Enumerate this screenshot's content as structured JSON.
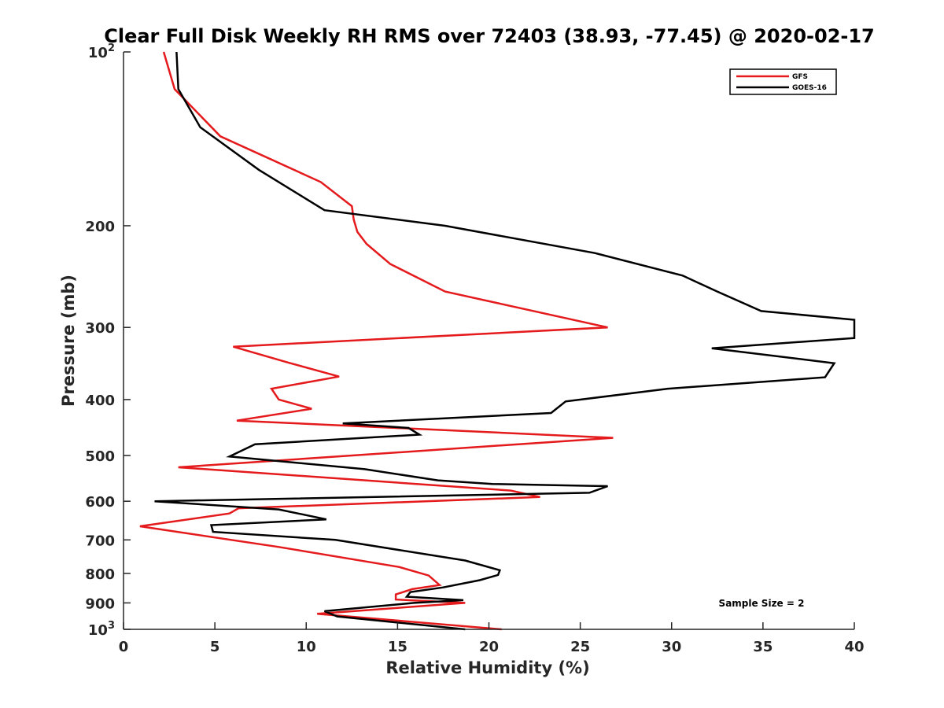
{
  "chart_data": {
    "type": "line",
    "title": "Clear Full Disk Weekly RH RMS over 72403 (38.93, -77.45) @ 2020-02-17",
    "xlabel": "Relative Humidity (%)",
    "ylabel": "Pressure (mb)",
    "xlim": [
      0,
      40
    ],
    "ylim": [
      100,
      1000
    ],
    "y_scale": "log",
    "y_reversed": true,
    "x_ticks": [
      "0",
      "5",
      "10",
      "15",
      "20",
      "25",
      "30",
      "35",
      "40"
    ],
    "y_ticks": [
      {
        "value": 100,
        "base": "10",
        "exp": "2"
      },
      {
        "value": 200,
        "base": "200",
        "exp": ""
      },
      {
        "value": 300,
        "base": "300",
        "exp": ""
      },
      {
        "value": 400,
        "base": "400",
        "exp": ""
      },
      {
        "value": 500,
        "base": "500",
        "exp": ""
      },
      {
        "value": 600,
        "base": "600",
        "exp": ""
      },
      {
        "value": 700,
        "base": "700",
        "exp": ""
      },
      {
        "value": 800,
        "base": "800",
        "exp": ""
      },
      {
        "value": 900,
        "base": "900",
        "exp": ""
      },
      {
        "value": 1000,
        "base": "10",
        "exp": "3"
      }
    ],
    "grid": false,
    "legend_position": "top-right",
    "annotation": "Sample Size = 2",
    "series": [
      {
        "name": "GFS",
        "color": "#e41a1c",
        "x": [
          2.2,
          2.8,
          5.3,
          10.8,
          12.5,
          12.6,
          12.8,
          13.3,
          14.6,
          17.6,
          26.5,
          6.0,
          9.0,
          11.8,
          8.1,
          8.5,
          10.3,
          6.2,
          26.8,
          3.0,
          21.2,
          22.8,
          6.3,
          5.8,
          0.9,
          8.5,
          15.1,
          16.7,
          17.3,
          15.8,
          14.9,
          14.9,
          18.7,
          10.6,
          20.7
        ],
        "y": [
          100,
          116,
          140,
          168,
          185,
          195,
          205,
          215,
          233,
          260,
          300,
          324,
          345,
          365,
          383,
          400,
          415,
          435,
          466,
          524,
          575,
          590,
          617,
          630,
          663,
          720,
          780,
          807,
          838,
          852,
          870,
          888,
          900,
          940,
          1000
        ]
      },
      {
        "name": "GOES-16",
        "color": "#000000",
        "x": [
          2.9,
          3.0,
          4.2,
          7.4,
          11.0,
          17.6,
          25.8,
          30.6,
          32.5,
          34.9,
          40.0,
          40.0,
          32.2,
          38.9,
          38.4,
          29.8,
          24.2,
          23.4,
          12.0,
          15.6,
          16.2,
          7.2,
          5.8,
          13.2,
          17.2,
          20.2,
          26.5,
          25.5,
          1.7,
          8.5,
          11.1,
          4.8,
          4.9,
          11.6,
          18.7,
          20.6,
          20.5,
          19.5,
          17.5,
          15.7,
          15.5,
          18.6,
          15.9,
          11.0,
          11.7,
          18.7
        ],
        "y": [
          100,
          116,
          135,
          160,
          188,
          200,
          223,
          244,
          260,
          281,
          291,
          313,
          326,
          346,
          366,
          383,
          403,
          422,
          440,
          448,
          460,
          478,
          502,
          528,
          552,
          560,
          565,
          580,
          600,
          620,
          645,
          660,
          678,
          700,
          760,
          790,
          805,
          822,
          846,
          862,
          878,
          890,
          900,
          930,
          950,
          1000
        ]
      }
    ]
  }
}
